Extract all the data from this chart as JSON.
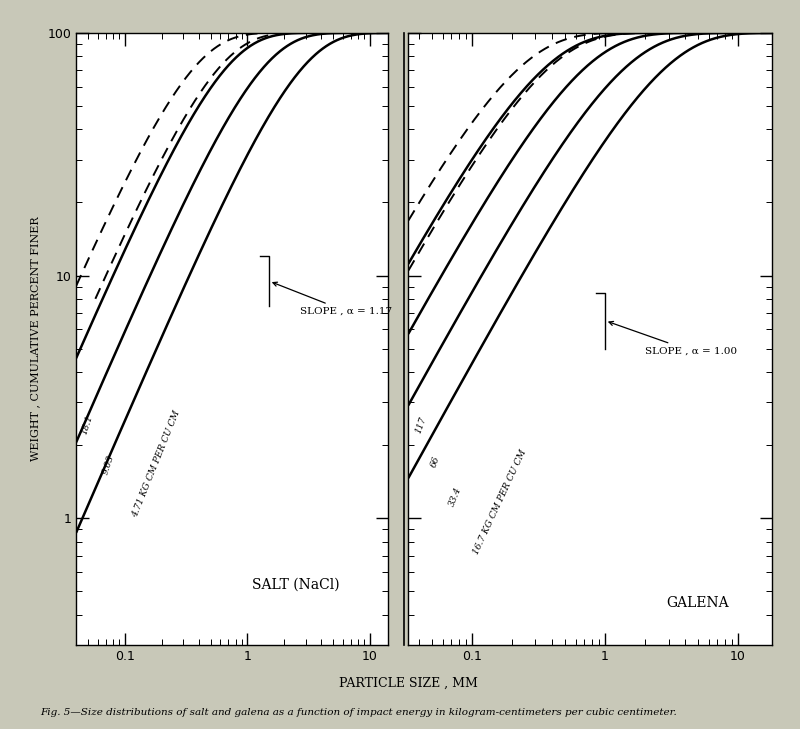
{
  "ylabel": "WEIGHT , CUMULATIVE PERCENT FINER",
  "xlabel": "PARTICLE SIZE , MM",
  "caption": "Fig. 5—Size distributions of salt and galena as a function of impact energy in kilogram-centimeters per cubic centimeter.",
  "salt_label": "SALT (NaCl)",
  "galena_label": "GALENA",
  "salt_slope_text": "SLOPE , α = 1.17",
  "galena_slope_text": "SLOPE , α = 1.00",
  "ylim_low": 0.3,
  "ylim_high": 100,
  "salt_xlim_low": 0.04,
  "salt_xlim_high": 14,
  "galena_xlim_low": 0.033,
  "galena_xlim_high": 18,
  "salt_d50": [
    0.55,
    1.1,
    2.3
  ],
  "salt_alpha": 1.17,
  "galena_d50": [
    0.28,
    0.56,
    1.12,
    2.25
  ],
  "galena_alpha": 1.0,
  "salt_dash_d50": [
    0.3,
    0.48
  ],
  "galena_dash_d50": [
    0.18,
    0.3
  ],
  "bg_color": "#c8c8b8",
  "plot_bg": "#ffffff"
}
